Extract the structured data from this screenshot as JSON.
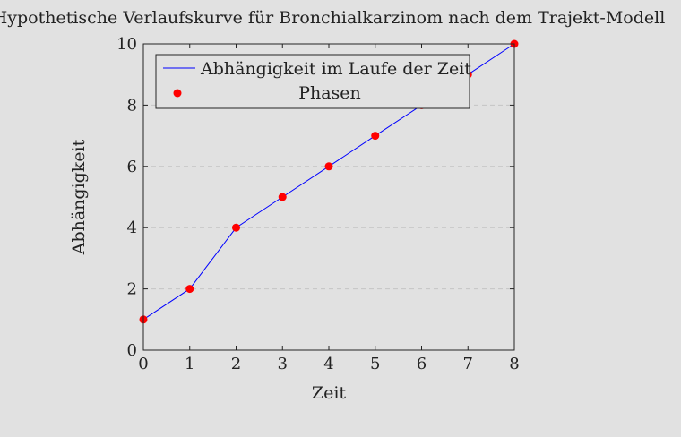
{
  "chart_data": {
    "type": "line",
    "title": "Hypothetische Verlaufskurve für Bronchialkarzinom nach dem Trajekt-Modell",
    "xlabel": "Zeit",
    "ylabel": "Abhängigkeit",
    "xlim": [
      0,
      8
    ],
    "ylim": [
      0,
      10
    ],
    "xticks": [
      0,
      1,
      2,
      3,
      4,
      5,
      6,
      7,
      8
    ],
    "yticks": [
      0,
      2,
      4,
      6,
      8,
      10
    ],
    "grid": "horizontal dashed",
    "legend_position": "top-left",
    "x": [
      0,
      1,
      2,
      3,
      4,
      5,
      6,
      7,
      8
    ],
    "series": [
      {
        "name": "Abhängigkeit im Laufe der Zeit",
        "kind": "line",
        "color": "#0000ff",
        "values": [
          1,
          2,
          4,
          5,
          6,
          7,
          8,
          9,
          10
        ]
      },
      {
        "name": "Phasen",
        "kind": "marker",
        "color": "#ff0000",
        "values": [
          1,
          2,
          4,
          5,
          6,
          7,
          8,
          9,
          10
        ]
      }
    ]
  }
}
